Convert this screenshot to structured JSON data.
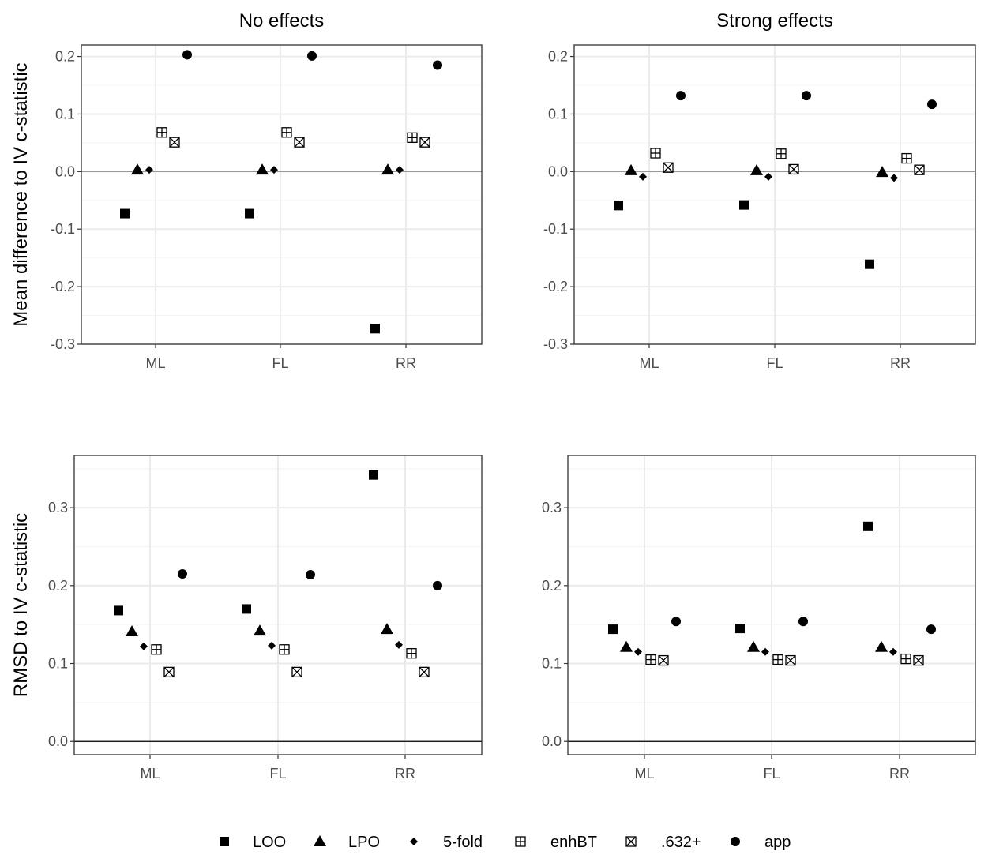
{
  "chart_data": {
    "type": "scatter",
    "layout": "2x2 facet grid",
    "legend": {
      "position": "bottom",
      "entries": [
        {
          "label": "LOO",
          "symbol": "square"
        },
        {
          "label": "LPO",
          "symbol": "triangle"
        },
        {
          "label": "5-fold",
          "symbol": "diamond"
        },
        {
          "label": "enhBT",
          "symbol": "boxplus"
        },
        {
          "label": ".632+",
          "symbol": "boxcross"
        },
        {
          "label": "app",
          "symbol": "circle"
        }
      ]
    },
    "colors": {
      "points": "#000000",
      "grid": "#ebebeb",
      "border": "#333333",
      "tick_text": "#4d4d4d"
    },
    "categories": [
      "ML",
      "FL",
      "RR"
    ],
    "panels": [
      {
        "id": "top-left",
        "title": "No effects",
        "ylabel": "Mean difference to IV c-statistic",
        "yticks": [
          0.2,
          0.1,
          0.0,
          -0.1,
          -0.2,
          -0.3
        ],
        "ytick_labels": [
          "0.2",
          "0.1",
          "0.0",
          "-0.1",
          "-0.2",
          "-0.3"
        ],
        "ylim": [
          -0.3,
          0.22
        ],
        "zero_line": true,
        "series": [
          {
            "name": "LOO",
            "values": [
              -0.073,
              -0.073,
              -0.273
            ]
          },
          {
            "name": "LPO",
            "values": [
              0.003,
              0.003,
              0.003
            ]
          },
          {
            "name": "5-fold",
            "values": [
              0.003,
              0.003,
              0.003
            ]
          },
          {
            "name": "enhBT",
            "values": [
              0.068,
              0.068,
              0.059
            ]
          },
          {
            "name": ".632+",
            "values": [
              0.051,
              0.051,
              0.051
            ]
          },
          {
            "name": "app",
            "values": [
              0.203,
              0.201,
              0.185
            ]
          }
        ]
      },
      {
        "id": "top-right",
        "title": "Strong effects",
        "ylabel": "",
        "yticks": [
          0.2,
          0.1,
          0.0,
          -0.1,
          -0.2,
          -0.3
        ],
        "ytick_labels": [
          "0.2",
          "0.1",
          "0.0",
          "-0.1",
          "-0.2",
          "-0.3"
        ],
        "ylim": [
          -0.3,
          0.22
        ],
        "zero_line": true,
        "series": [
          {
            "name": "LOO",
            "values": [
              -0.059,
              -0.058,
              -0.161
            ]
          },
          {
            "name": "LPO",
            "values": [
              0.002,
              0.002,
              -0.001
            ]
          },
          {
            "name": "5-fold",
            "values": [
              -0.009,
              -0.009,
              -0.011
            ]
          },
          {
            "name": "enhBT",
            "values": [
              0.032,
              0.031,
              0.023
            ]
          },
          {
            "name": ".632+",
            "values": [
              0.007,
              0.004,
              0.003
            ]
          },
          {
            "name": "app",
            "values": [
              0.132,
              0.132,
              0.117
            ]
          }
        ]
      },
      {
        "id": "bottom-left",
        "title": "",
        "ylabel": "RMSD to IV c-statistic",
        "yticks": [
          0.3,
          0.2,
          0.1,
          0.0
        ],
        "ytick_labels": [
          "0.3",
          "0.2",
          "0.1",
          "0.0"
        ],
        "ylim": [
          -0.017,
          0.367
        ],
        "zero_line": true,
        "series": [
          {
            "name": "LOO",
            "values": [
              0.168,
              0.17,
              0.342
            ]
          },
          {
            "name": "LPO",
            "values": [
              0.141,
              0.142,
              0.144
            ]
          },
          {
            "name": "5-fold",
            "values": [
              0.122,
              0.123,
              0.124
            ]
          },
          {
            "name": "enhBT",
            "values": [
              0.118,
              0.118,
              0.113
            ]
          },
          {
            "name": ".632+",
            "values": [
              0.089,
              0.089,
              0.089
            ]
          },
          {
            "name": "app",
            "values": [
              0.215,
              0.214,
              0.2
            ]
          }
        ]
      },
      {
        "id": "bottom-right",
        "title": "",
        "ylabel": "",
        "yticks": [
          0.3,
          0.2,
          0.1,
          0.0
        ],
        "ytick_labels": [
          "0.3",
          "0.2",
          "0.1",
          "0.0"
        ],
        "ylim": [
          -0.017,
          0.367
        ],
        "zero_line": true,
        "series": [
          {
            "name": "LOO",
            "values": [
              0.144,
              0.145,
              0.276
            ]
          },
          {
            "name": "LPO",
            "values": [
              0.121,
              0.121,
              0.121
            ]
          },
          {
            "name": "5-fold",
            "values": [
              0.115,
              0.115,
              0.115
            ]
          },
          {
            "name": "enhBT",
            "values": [
              0.105,
              0.105,
              0.106
            ]
          },
          {
            "name": ".632+",
            "values": [
              0.104,
              0.104,
              0.104
            ]
          },
          {
            "name": "app",
            "values": [
              0.154,
              0.154,
              0.144
            ]
          }
        ]
      }
    ]
  }
}
